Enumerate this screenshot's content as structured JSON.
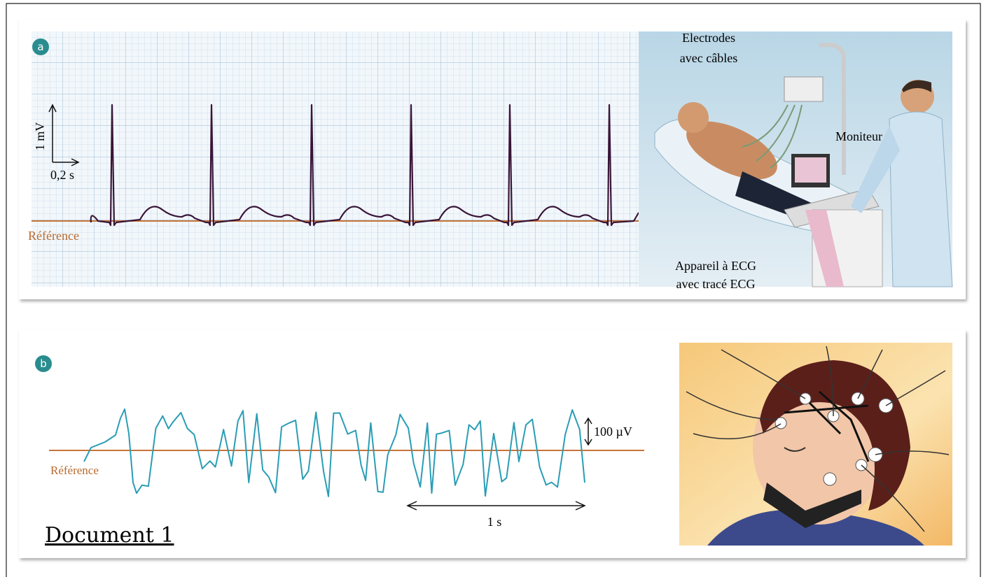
{
  "panel_a": {
    "label": "a",
    "ecg": {
      "y_scale": "1 mV",
      "x_scale": "0,2 s",
      "reference": "Référence"
    },
    "illustration": {
      "electrodes": [
        "Electrodes",
        "avec câbles"
      ],
      "monitor": "Moniteur",
      "device": [
        "Appareil à ECG",
        "avec tracé ECG"
      ]
    }
  },
  "panel_b": {
    "label": "b",
    "eeg": {
      "reference": "Référence",
      "amplitude_scale": "100 µV",
      "time_scale": "1 s"
    }
  },
  "caption": "Document 1"
}
